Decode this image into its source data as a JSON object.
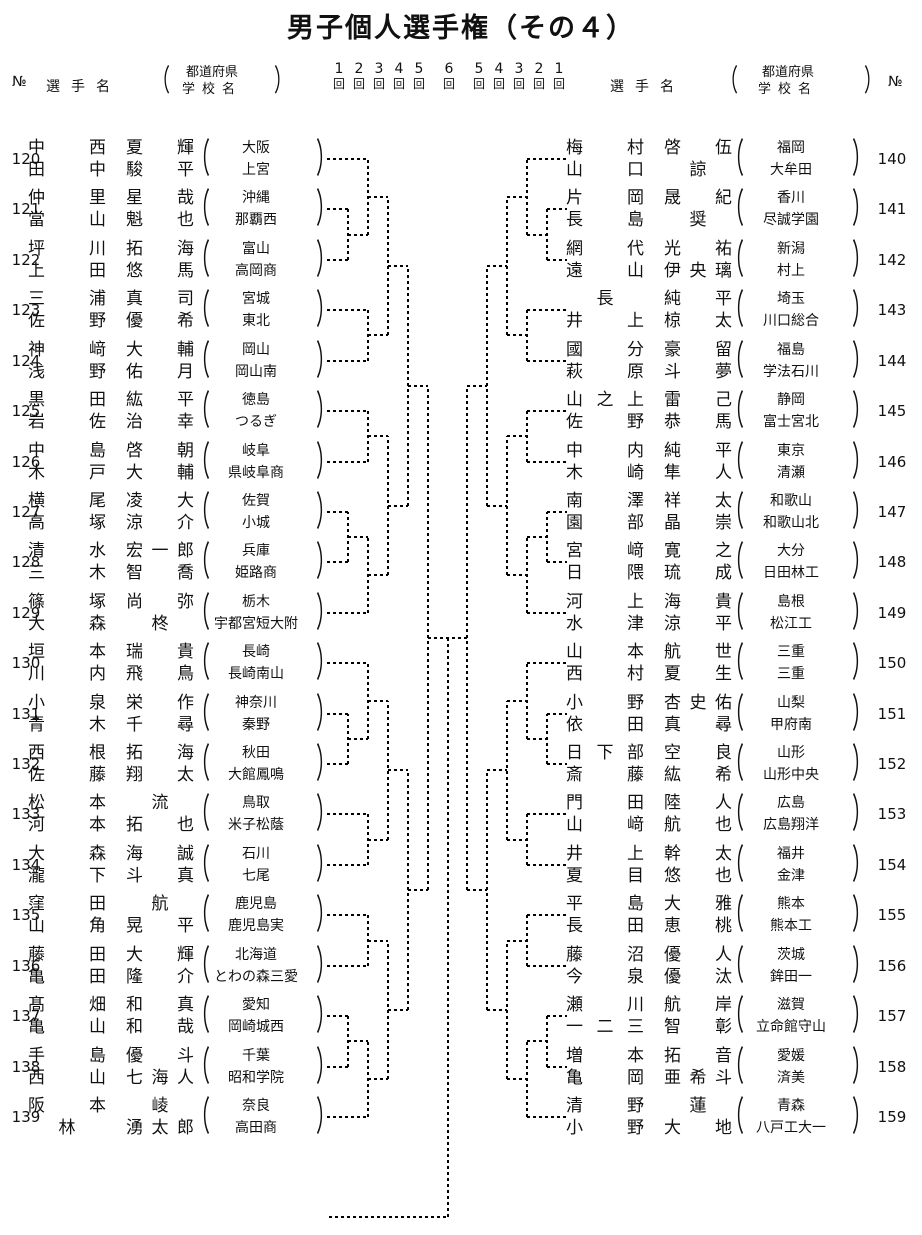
{
  "title": "男子個人選手権（その４）",
  "header": {
    "no_label": "№",
    "player_label": "選手名",
    "paren_open": "（",
    "paren_close": "）",
    "pref_label": "都道府県",
    "school_label": "学校名"
  },
  "round_header": {
    "numbers": [
      "1",
      "2",
      "3",
      "4",
      "5",
      "6",
      "5",
      "4",
      "3",
      "2",
      "1"
    ],
    "unit": "回"
  },
  "entries": [
    {
      "no": 120,
      "players": [
        {
          "sei": "中西",
          "mei": "夏輝"
        },
        {
          "sei": "田中",
          "mei": "駿平"
        }
      ],
      "pref": "大阪",
      "school": "上宮"
    },
    {
      "no": 121,
      "players": [
        {
          "sei": "仲里",
          "mei": "星哉"
        },
        {
          "sei": "當山",
          "mei": "魁也"
        }
      ],
      "pref": "沖縄",
      "school": "那覇西"
    },
    {
      "no": 122,
      "players": [
        {
          "sei": "坪川",
          "mei": "拓海"
        },
        {
          "sei": "上田",
          "mei": "悠馬"
        }
      ],
      "pref": "富山",
      "school": "高岡商"
    },
    {
      "no": 123,
      "players": [
        {
          "sei": "三浦",
          "mei": "真司"
        },
        {
          "sei": "佐野",
          "mei": "優希"
        }
      ],
      "pref": "宮城",
      "school": "東北"
    },
    {
      "no": 124,
      "players": [
        {
          "sei": "神﨑",
          "mei": "大輔"
        },
        {
          "sei": "浅野",
          "mei": "佑月"
        }
      ],
      "pref": "岡山",
      "school": "岡山南"
    },
    {
      "no": 125,
      "players": [
        {
          "sei": "黒田",
          "mei": "紘平"
        },
        {
          "sei": "岩佐",
          "mei": "治幸"
        }
      ],
      "pref": "徳島",
      "school": "つるぎ"
    },
    {
      "no": 126,
      "players": [
        {
          "sei": "中島",
          "mei": "啓朝"
        },
        {
          "sei": "木戸",
          "mei": "大輔"
        }
      ],
      "pref": "岐阜",
      "school": "県岐阜商"
    },
    {
      "no": 127,
      "players": [
        {
          "sei": "横尾",
          "mei": "凌大"
        },
        {
          "sei": "高塚",
          "mei": "涼介"
        }
      ],
      "pref": "佐賀",
      "school": "小城"
    },
    {
      "no": 128,
      "players": [
        {
          "sei": "清水",
          "mei": "宏一郎"
        },
        {
          "sei": "三木",
          "mei": "智喬"
        }
      ],
      "pref": "兵庫",
      "school": "姫路商"
    },
    {
      "no": 129,
      "players": [
        {
          "sei": "篠塚",
          "mei": "尚弥"
        },
        {
          "sei": "大森",
          "mei": "柊"
        }
      ],
      "pref": "栃木",
      "school": "宇都宮短大附"
    },
    {
      "no": 130,
      "players": [
        {
          "sei": "垣本",
          "mei": "瑞貴"
        },
        {
          "sei": "川内",
          "mei": "飛鳥"
        }
      ],
      "pref": "長崎",
      "school": "長崎南山"
    },
    {
      "no": 131,
      "players": [
        {
          "sei": "小泉",
          "mei": "栄作"
        },
        {
          "sei": "青木",
          "mei": "千尋"
        }
      ],
      "pref": "神奈川",
      "school": "秦野"
    },
    {
      "no": 132,
      "players": [
        {
          "sei": "西根",
          "mei": "拓海"
        },
        {
          "sei": "佐藤",
          "mei": "翔太"
        }
      ],
      "pref": "秋田",
      "school": "大館鳳鳴"
    },
    {
      "no": 133,
      "players": [
        {
          "sei": "松本",
          "mei": "流"
        },
        {
          "sei": "河本",
          "mei": "拓也"
        }
      ],
      "pref": "鳥取",
      "school": "米子松蔭"
    },
    {
      "no": 134,
      "players": [
        {
          "sei": "大森",
          "mei": "海誠"
        },
        {
          "sei": "瀧下",
          "mei": "斗真"
        }
      ],
      "pref": "石川",
      "school": "七尾"
    },
    {
      "no": 135,
      "players": [
        {
          "sei": "窪田",
          "mei": "航"
        },
        {
          "sei": "山角",
          "mei": "晃平"
        }
      ],
      "pref": "鹿児島",
      "school": "鹿児島実"
    },
    {
      "no": 136,
      "players": [
        {
          "sei": "藤田",
          "mei": "大輝"
        },
        {
          "sei": "亀田",
          "mei": "隆介"
        }
      ],
      "pref": "北海道",
      "school": "とわの森三愛"
    },
    {
      "no": 137,
      "players": [
        {
          "sei": "髙畑",
          "mei": "和真"
        },
        {
          "sei": "亀山",
          "mei": "和哉"
        }
      ],
      "pref": "愛知",
      "school": "岡崎城西"
    },
    {
      "no": 138,
      "players": [
        {
          "sei": "手島",
          "mei": "優斗"
        },
        {
          "sei": "西山",
          "mei": "七海人"
        }
      ],
      "pref": "千葉",
      "school": "昭和学院"
    },
    {
      "no": 139,
      "players": [
        {
          "sei": "阪本",
          "mei": "崚"
        },
        {
          "sei": "林",
          "mei": "湧太郎"
        }
      ],
      "pref": "奈良",
      "school": "高田商"
    },
    {
      "no": 140,
      "players": [
        {
          "sei": "梅村",
          "mei": "啓伍"
        },
        {
          "sei": "山口",
          "mei": "諒"
        }
      ],
      "pref": "福岡",
      "school": "大牟田"
    },
    {
      "no": 141,
      "players": [
        {
          "sei": "片岡",
          "mei": "晟紀"
        },
        {
          "sei": "長島",
          "mei": "奨"
        }
      ],
      "pref": "香川",
      "school": "尽誠学園"
    },
    {
      "no": 142,
      "players": [
        {
          "sei": "網代",
          "mei": "光祐"
        },
        {
          "sei": "遠山",
          "mei": "伊央璃"
        }
      ],
      "pref": "新潟",
      "school": "村上"
    },
    {
      "no": 143,
      "players": [
        {
          "sei": "長",
          "mei": "純平"
        },
        {
          "sei": "井上",
          "mei": "椋太"
        }
      ],
      "pref": "埼玉",
      "school": "川口総合"
    },
    {
      "no": 144,
      "players": [
        {
          "sei": "國分",
          "mei": "豪留"
        },
        {
          "sei": "萩原",
          "mei": "斗夢"
        }
      ],
      "pref": "福島",
      "school": "学法石川"
    },
    {
      "no": 145,
      "players": [
        {
          "sei": "山之上",
          "mei": "雷己"
        },
        {
          "sei": "佐野",
          "mei": "恭馬"
        }
      ],
      "pref": "静岡",
      "school": "富士宮北"
    },
    {
      "no": 146,
      "players": [
        {
          "sei": "中内",
          "mei": "純平"
        },
        {
          "sei": "木崎",
          "mei": "隼人"
        }
      ],
      "pref": "東京",
      "school": "清瀬"
    },
    {
      "no": 147,
      "players": [
        {
          "sei": "南澤",
          "mei": "祥太"
        },
        {
          "sei": "園部",
          "mei": "晶崇"
        }
      ],
      "pref": "和歌山",
      "school": "和歌山北"
    },
    {
      "no": 148,
      "players": [
        {
          "sei": "宮﨑",
          "mei": "寛之"
        },
        {
          "sei": "日隈",
          "mei": "琉成"
        }
      ],
      "pref": "大分",
      "school": "日田林工"
    },
    {
      "no": 149,
      "players": [
        {
          "sei": "河上",
          "mei": "海貴"
        },
        {
          "sei": "水津",
          "mei": "涼平"
        }
      ],
      "pref": "島根",
      "school": "松江工"
    },
    {
      "no": 150,
      "players": [
        {
          "sei": "山本",
          "mei": "航世"
        },
        {
          "sei": "西村",
          "mei": "夏生"
        }
      ],
      "pref": "三重",
      "school": "三重"
    },
    {
      "no": 151,
      "players": [
        {
          "sei": "小野",
          "mei": "杏史佑"
        },
        {
          "sei": "依田",
          "mei": "真尋"
        }
      ],
      "pref": "山梨",
      "school": "甲府南"
    },
    {
      "no": 152,
      "players": [
        {
          "sei": "日下部",
          "mei": "空良"
        },
        {
          "sei": "斎藤",
          "mei": "紘希"
        }
      ],
      "pref": "山形",
      "school": "山形中央"
    },
    {
      "no": 153,
      "players": [
        {
          "sei": "門田",
          "mei": "陸人"
        },
        {
          "sei": "山﨑",
          "mei": "航也"
        }
      ],
      "pref": "広島",
      "school": "広島翔洋"
    },
    {
      "no": 154,
      "players": [
        {
          "sei": "井上",
          "mei": "幹太"
        },
        {
          "sei": "夏目",
          "mei": "悠也"
        }
      ],
      "pref": "福井",
      "school": "金津"
    },
    {
      "no": 155,
      "players": [
        {
          "sei": "平島",
          "mei": "大雅"
        },
        {
          "sei": "長田",
          "mei": "恵桃"
        }
      ],
      "pref": "熊本",
      "school": "熊本工"
    },
    {
      "no": 156,
      "players": [
        {
          "sei": "藤沼",
          "mei": "優人"
        },
        {
          "sei": "今泉",
          "mei": "優汰"
        }
      ],
      "pref": "茨城",
      "school": "鉾田一"
    },
    {
      "no": 157,
      "players": [
        {
          "sei": "瀬川",
          "mei": "航岸"
        },
        {
          "sei": "一二三",
          "mei": "智彰"
        }
      ],
      "pref": "滋賀",
      "school": "立命館守山"
    },
    {
      "no": 158,
      "players": [
        {
          "sei": "増本",
          "mei": "拓音"
        },
        {
          "sei": "亀岡",
          "mei": "亜希斗"
        }
      ],
      "pref": "愛媛",
      "school": "済美"
    },
    {
      "no": 159,
      "players": [
        {
          "sei": "清野",
          "mei": "蓮"
        },
        {
          "sei": "小野",
          "mei": "大地"
        }
      ],
      "pref": "青森",
      "school": "八戸工大一"
    }
  ],
  "bracket": {
    "left_tree": [
      [
        [
          [
            120,
            [
              121,
              122
            ]
          ],
          [
            123,
            124
          ]
        ],
        [
          [
            125,
            126
          ],
          [
            [
              127,
              128
            ],
            129
          ]
        ]
      ],
      [
        [
          [
            130,
            [
              131,
              132
            ]
          ],
          [
            133,
            134
          ]
        ],
        [
          [
            135,
            136
          ],
          [
            [
              137,
              138
            ],
            139
          ]
        ]
      ]
    ],
    "right_tree": [
      [
        [
          [
            140,
            [
              141,
              142
            ]
          ],
          [
            143,
            144
          ]
        ],
        [
          [
            145,
            146
          ],
          [
            [
              147,
              148
            ],
            149
          ]
        ]
      ],
      [
        [
          [
            150,
            [
              151,
              152
            ]
          ],
          [
            153,
            154
          ]
        ],
        [
          [
            155,
            156
          ],
          [
            [
              157,
              158
            ],
            159
          ]
        ]
      ]
    ]
  }
}
